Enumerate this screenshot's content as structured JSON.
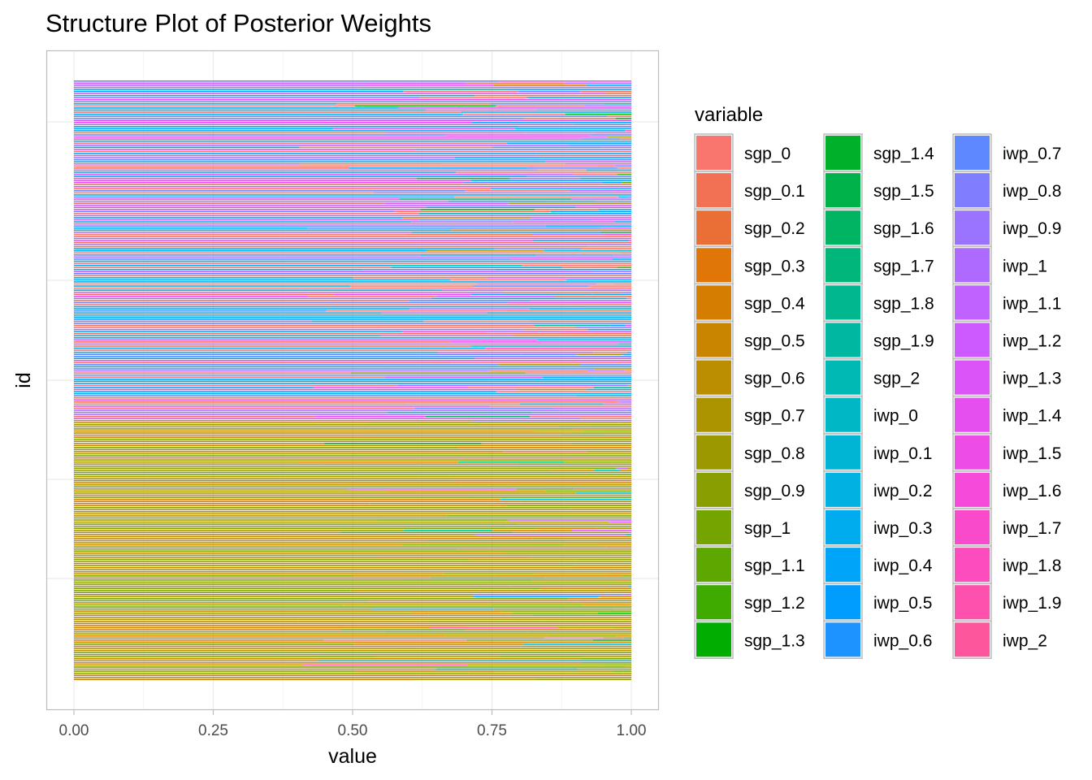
{
  "chart_data": {
    "type": "bar",
    "orientation": "horizontal",
    "stacked": true,
    "title": "Structure Plot of Posterior Weights",
    "xlabel": "value",
    "ylabel": "id",
    "xlim": [
      0,
      1
    ],
    "x_ticks": [
      "0.00",
      "0.25",
      "0.50",
      "0.75",
      "1.00"
    ],
    "x_tick_values": [
      0,
      0.25,
      0.5,
      0.75,
      1.0
    ],
    "y_tick_labels": "none",
    "grid": true,
    "n_ids": 290,
    "legend": {
      "title": "variable",
      "placement": "right",
      "columns": 3,
      "entries": [
        {
          "name": "sgp_0",
          "color": "#F8766D"
        },
        {
          "name": "sgp_0.1",
          "color": "#F27054"
        },
        {
          "name": "sgp_0.2",
          "color": "#EA6F37"
        },
        {
          "name": "sgp_0.3",
          "color": "#E07508"
        },
        {
          "name": "sgp_0.4",
          "color": "#D57D00"
        },
        {
          "name": "sgp_0.5",
          "color": "#C98500"
        },
        {
          "name": "sgp_0.6",
          "color": "#BB8D00"
        },
        {
          "name": "sgp_0.7",
          "color": "#AC9300"
        },
        {
          "name": "sgp_0.8",
          "color": "#9C9900"
        },
        {
          "name": "sgp_0.9",
          "color": "#899E00"
        },
        {
          "name": "sgp_1",
          "color": "#75A300"
        },
        {
          "name": "sgp_1.1",
          "color": "#5DA700"
        },
        {
          "name": "sgp_1.2",
          "color": "#3FAA00"
        },
        {
          "name": "sgp_1.3",
          "color": "#00AD00"
        },
        {
          "name": "sgp_1.4",
          "color": "#00B02B"
        },
        {
          "name": "sgp_1.5",
          "color": "#00B24A"
        },
        {
          "name": "sgp_1.6",
          "color": "#00B463"
        },
        {
          "name": "sgp_1.7",
          "color": "#00B67A"
        },
        {
          "name": "sgp_1.8",
          "color": "#00B78F"
        },
        {
          "name": "sgp_1.9",
          "color": "#00B8A2"
        },
        {
          "name": "sgp_2",
          "color": "#00B9B4"
        },
        {
          "name": "iwp_0",
          "color": "#00B8C5"
        },
        {
          "name": "iwp_0.1",
          "color": "#00B5D4"
        },
        {
          "name": "iwp_0.2",
          "color": "#00B1E2"
        },
        {
          "name": "iwp_0.3",
          "color": "#00ACEE"
        },
        {
          "name": "iwp_0.4",
          "color": "#00A5F9"
        },
        {
          "name": "iwp_0.5",
          "color": "#009DFF"
        },
        {
          "name": "iwp_0.6",
          "color": "#1D93FF"
        },
        {
          "name": "iwp_0.7",
          "color": "#5E88FF"
        },
        {
          "name": "iwp_0.8",
          "color": "#807DFF"
        },
        {
          "name": "iwp_0.9",
          "color": "#9A73FF"
        },
        {
          "name": "iwp_1",
          "color": "#AE6AFF"
        },
        {
          "name": "iwp_1.1",
          "color": "#BF62FF"
        },
        {
          "name": "iwp_1.2",
          "color": "#CD5AFF"
        },
        {
          "name": "iwp_1.3",
          "color": "#DA54F8"
        },
        {
          "name": "iwp_1.4",
          "color": "#E54FF0"
        },
        {
          "name": "iwp_1.5",
          "color": "#EE4CE6"
        },
        {
          "name": "iwp_1.6",
          "color": "#F54ADA"
        },
        {
          "name": "iwp_1.7",
          "color": "#FA4ACC"
        },
        {
          "name": "iwp_1.8",
          "color": "#FD4CBD"
        },
        {
          "name": "iwp_1.9",
          "color": "#FE50AD"
        },
        {
          "name": "iwp_2",
          "color": "#FE569C"
        }
      ]
    },
    "blocks": [
      {
        "ids": 165,
        "dominant": [
          "sgp_0",
          "sgp_0.1",
          "iwp_0.3",
          "iwp_0.4",
          "iwp_0.7",
          "iwp_1",
          "iwp_1.4"
        ]
      },
      {
        "ids": 125,
        "dominant": [
          "sgp_0.4",
          "sgp_0.5",
          "sgp_0.6",
          "sgp_0.7",
          "sgp_0.8",
          "sgp_0.9",
          "sgp_1"
        ]
      }
    ]
  }
}
